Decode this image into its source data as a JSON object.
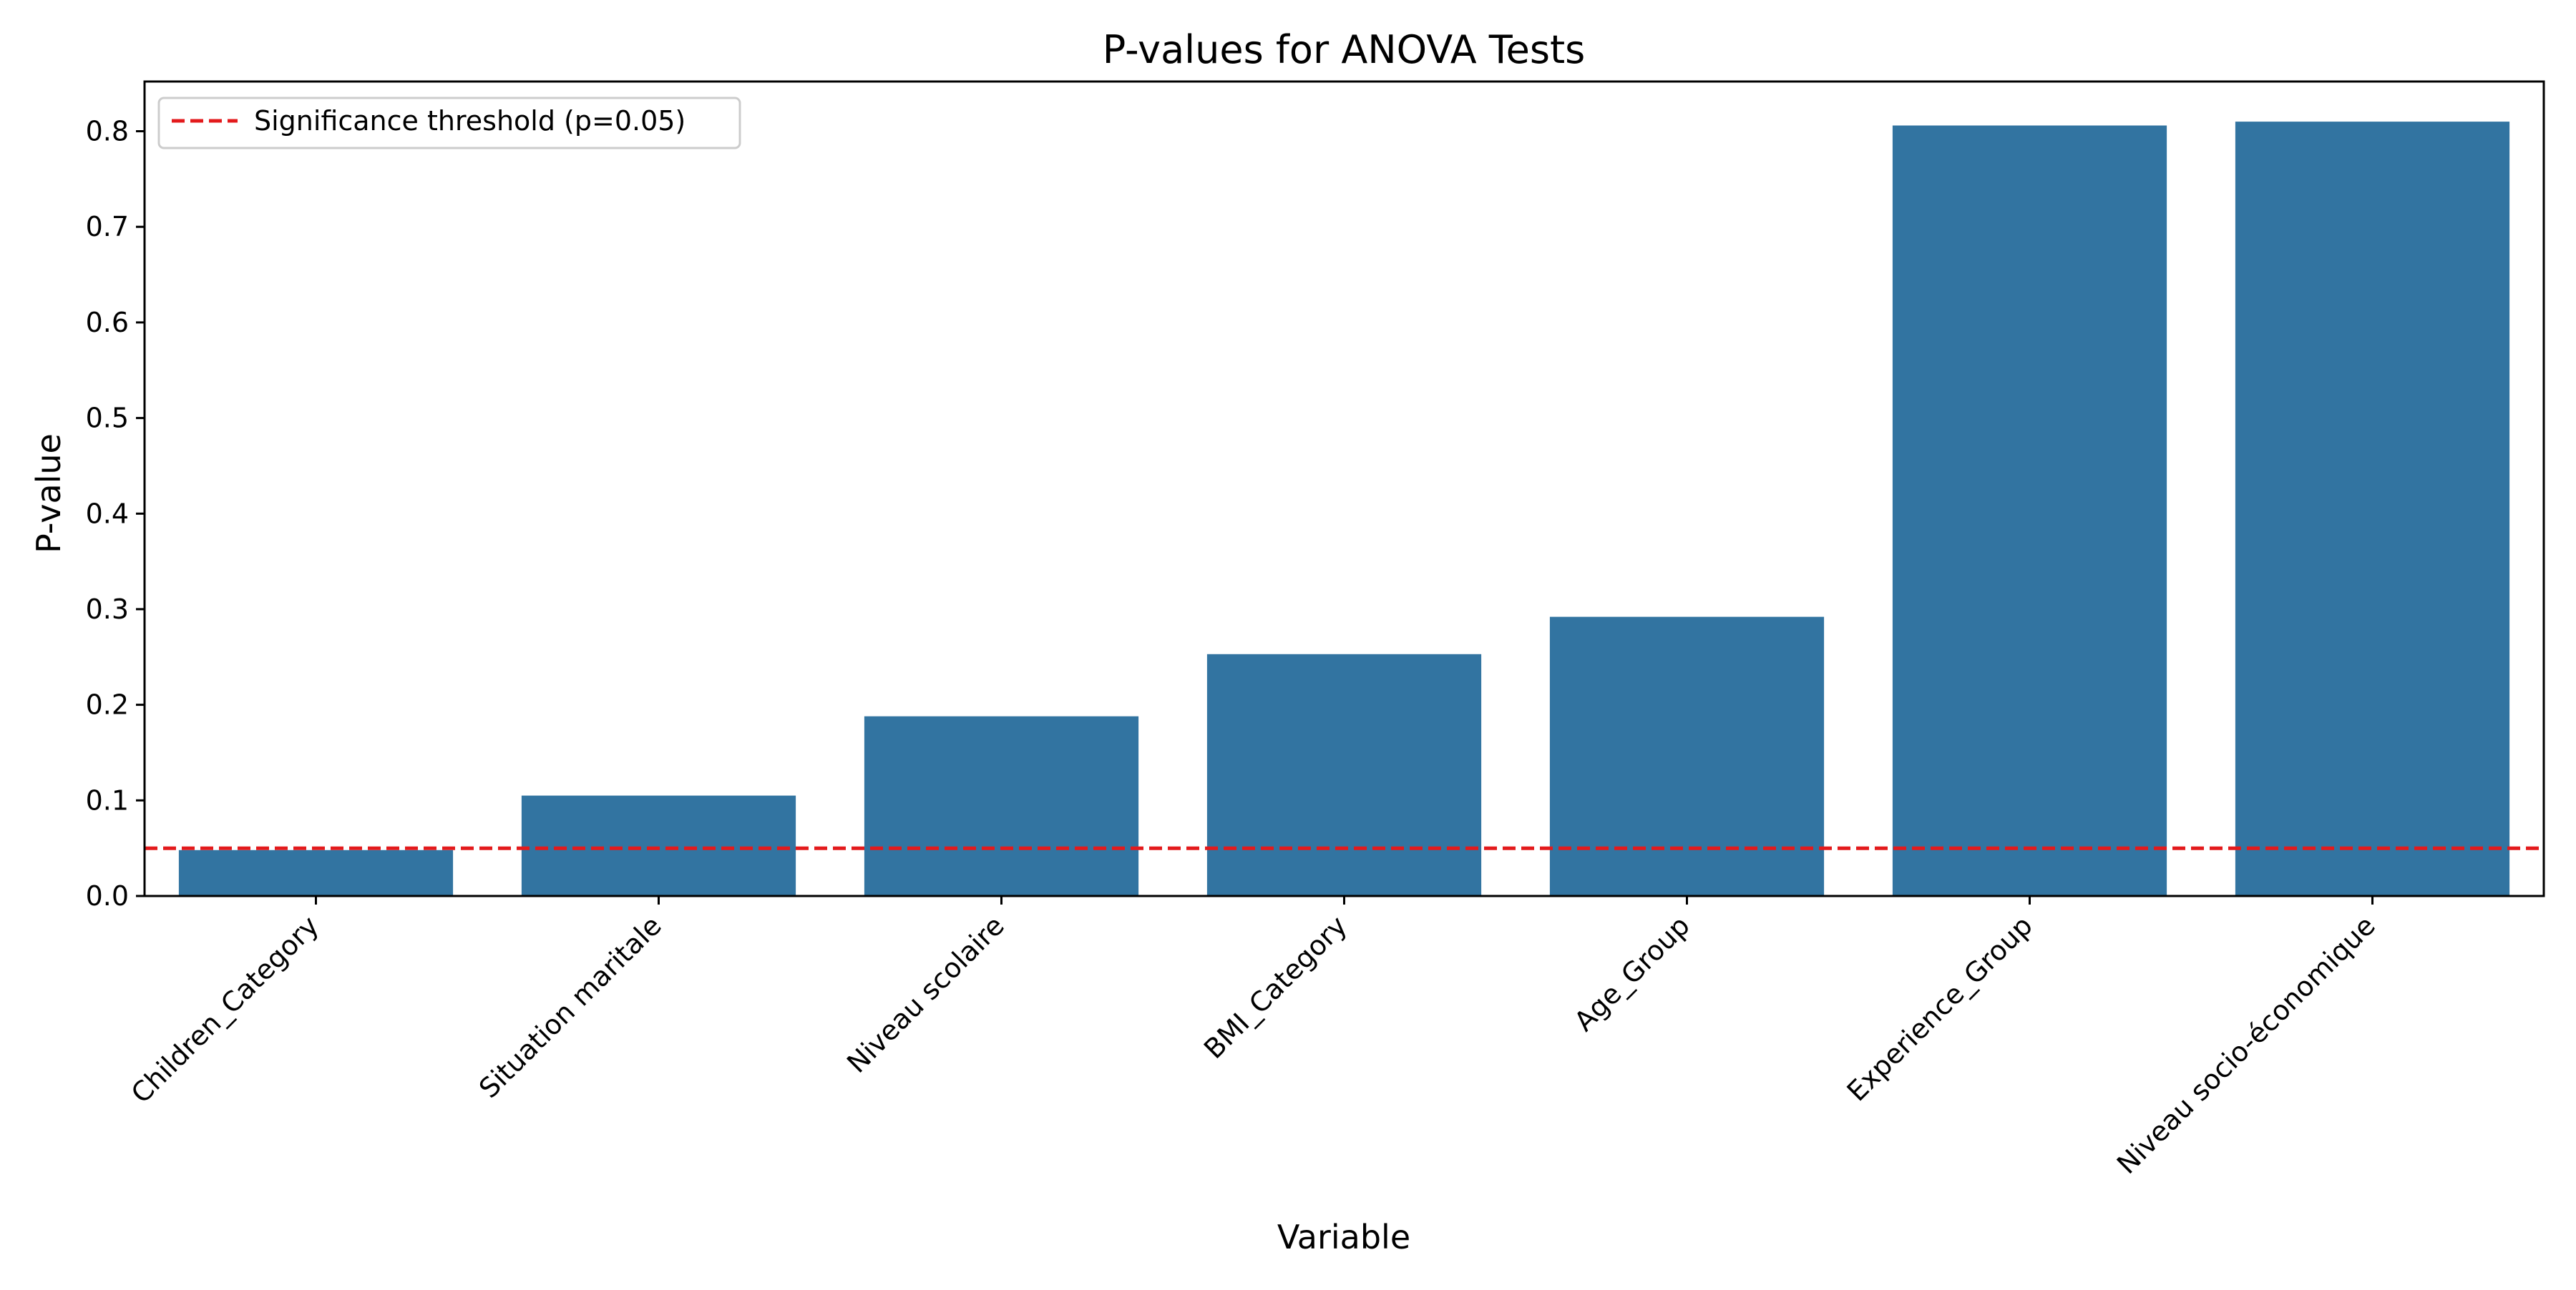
{
  "chart_data": {
    "type": "bar",
    "title": "P-values for ANOVA Tests",
    "xlabel": "Variable",
    "ylabel": "P-value",
    "categories": [
      "Children_Category",
      "Situation maritale",
      "Niveau scolaire",
      "BMI_Category",
      "Age_Group",
      "Experience_Group",
      "Niveau socio-économique"
    ],
    "values": [
      0.048,
      0.105,
      0.188,
      0.253,
      0.292,
      0.806,
      0.81
    ],
    "ylim": [
      0,
      0.852
    ],
    "yticks": [
      "0.0",
      "0.1",
      "0.2",
      "0.3",
      "0.4",
      "0.5",
      "0.6",
      "0.7",
      "0.8"
    ],
    "bar_color": "#3274a1",
    "threshold": {
      "value": 0.05,
      "label": "Significance threshold (p=0.05)",
      "color": "#e31a1c",
      "style": "dashed"
    },
    "legend_position": "top-left",
    "grid": false
  }
}
